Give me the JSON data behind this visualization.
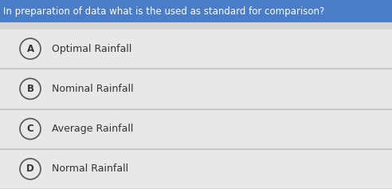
{
  "question": "In preparation of data what is the used as standard for comparison?",
  "question_bg": "#4a7cc7",
  "question_text_color": "#ffffff",
  "options": [
    {
      "letter": "A",
      "text": "Optimal Rainfall"
    },
    {
      "letter": "B",
      "text": "Nominal Rainfall"
    },
    {
      "letter": "C",
      "text": "Average Rainfall"
    },
    {
      "letter": "D",
      "text": "Normal Rainfall"
    }
  ],
  "bg_color": "#d4d4d4",
  "option_bg_color": "#e8e8e8",
  "separator_color": "#c0c0c0",
  "circle_edge_color": "#555555",
  "circle_face_color": "#e8e8e8",
  "letter_color": "#333333",
  "option_text_color": "#333333",
  "question_fontsize": 8.5,
  "option_fontsize": 9.0,
  "letter_fontsize": 8.5,
  "fig_width": 4.92,
  "fig_height": 2.37,
  "dpi": 100
}
